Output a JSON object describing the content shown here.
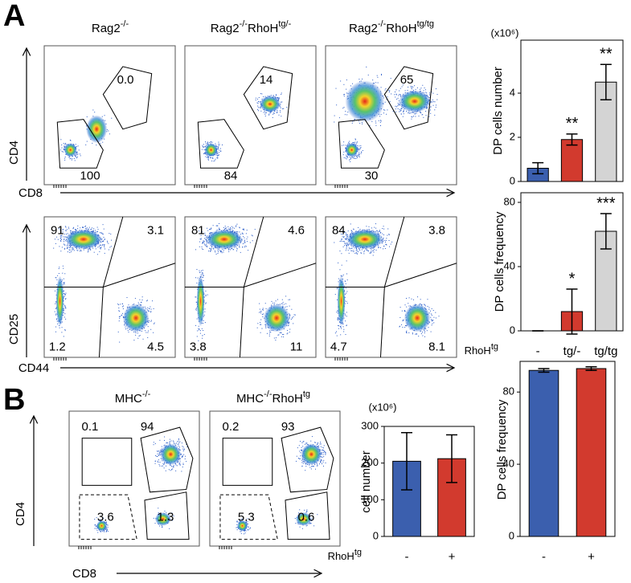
{
  "panel_a": {
    "label": "A",
    "column_titles": [
      [
        "Rag2",
        "-/-"
      ],
      [
        "Rag2",
        "-/-",
        "RhoH",
        "tg/-"
      ],
      [
        "Rag2",
        "-/-",
        "RhoH",
        "tg/tg"
      ]
    ],
    "top_axes": {
      "y": "CD4",
      "x": "CD8"
    },
    "bottom_axes": {
      "y": "CD25",
      "x": "CD44"
    },
    "top_gates": [
      [
        "0.0",
        "100"
      ],
      [
        "14",
        "84"
      ],
      [
        "65",
        "30"
      ]
    ],
    "bottom_quadrants": [
      [
        "91",
        "3.1",
        "1.2",
        "4.5"
      ],
      [
        "81",
        "4.6",
        "3.8",
        "11"
      ],
      [
        "84",
        "3.8",
        "4.7",
        "8.1"
      ]
    ]
  },
  "panel_b": {
    "label": "B",
    "column_titles": [
      [
        "MHC",
        "-/-"
      ],
      [
        "MHC",
        "-/-",
        "RhoH",
        "tg"
      ]
    ],
    "axes": {
      "y": "CD4",
      "x": "CD8"
    },
    "gates": [
      [
        "0.1",
        "94",
        "3.6",
        "1.3"
      ],
      [
        "0.2",
        "93",
        "5.3",
        "0.6"
      ]
    ]
  },
  "chart_data": [
    {
      "type": "bar",
      "ylabel": "DP cells number",
      "unit_label": "(x10⁶)",
      "ylim": [
        0,
        6.4
      ],
      "yticks": [
        0,
        2,
        4
      ],
      "values": [
        0.6,
        1.9,
        4.5
      ],
      "errors": [
        0.25,
        0.25,
        0.8
      ],
      "colors": [
        "#3b5fae",
        "#d23a2e",
        "#d4d4d4"
      ],
      "annotations": [
        null,
        "**",
        "**"
      ]
    },
    {
      "type": "bar",
      "ylabel": "DP cells frequency",
      "ylim": [
        0,
        86
      ],
      "yticks": [
        0,
        40,
        80
      ],
      "categories": [
        "-",
        "tg/-",
        "tg/tg"
      ],
      "xlabel": [
        "RhoH",
        "tg"
      ],
      "values": [
        0,
        12,
        62
      ],
      "errors": [
        0,
        14,
        11
      ],
      "colors": [
        "#3b5fae",
        "#d23a2e",
        "#d4d4d4"
      ],
      "annotations": [
        null,
        "*",
        "***"
      ]
    },
    {
      "type": "bar",
      "ylabel": "cell number",
      "unit_label": "(x10⁶)",
      "ylim": [
        0,
        300
      ],
      "yticks": [
        0,
        100,
        200,
        300
      ],
      "categories": [
        "-",
        "+"
      ],
      "xlabel": [
        "RhoH",
        "tg"
      ],
      "values": [
        205,
        212
      ],
      "errors": [
        78,
        65
      ],
      "colors": [
        "#3b5fae",
        "#d23a2e"
      ]
    },
    {
      "type": "bar",
      "ylabel": "DP cells frequency",
      "ylim": [
        0,
        97
      ],
      "yticks": [
        0,
        40,
        80
      ],
      "categories": [
        "-",
        "+"
      ],
      "values": [
        92,
        93
      ],
      "errors": [
        1,
        1
      ],
      "colors": [
        "#3b5fae",
        "#d23a2e"
      ]
    }
  ]
}
